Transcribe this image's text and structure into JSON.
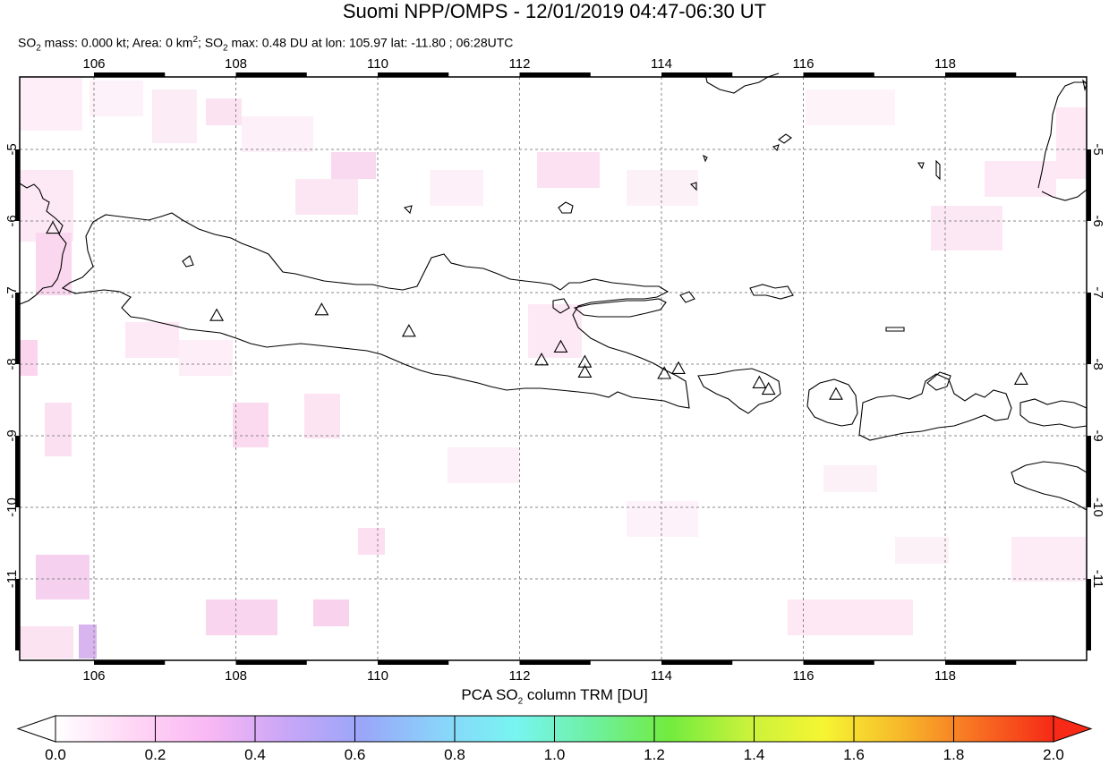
{
  "header": {
    "title": "Suomi NPP/OMPS - 12/01/2019 04:47-06:30 UT",
    "subtitle_parts": {
      "p1": "SO",
      "p1_sub": "2",
      "p2": " mass: 0.000 kt; Area: 0 km",
      "p2_sup": "2",
      "p3": "; SO",
      "p3_sub": "2",
      "p4": " max: 0.48 DU at lon: 105.97 lat: -11.80 ; 06:28UTC"
    }
  },
  "map": {
    "lon_range": [
      105.0,
      120.0
    ],
    "lat_range": [
      -12.1,
      -3.9
    ],
    "lon_ticks": [
      "106",
      "108",
      "110",
      "112",
      "114",
      "116",
      "118"
    ],
    "lat_ticks": [
      "-5",
      "-6",
      "-7",
      "-8",
      "-9",
      "-10",
      "-11"
    ],
    "grid": "dashed",
    "volcano_marker": "triangle-icon",
    "volcanoes": [
      {
        "lon": 105.42,
        "lat": -6.1
      },
      {
        "lon": 107.73,
        "lat": -7.32
      },
      {
        "lon": 109.21,
        "lat": -7.24
      },
      {
        "lon": 110.44,
        "lat": -7.54
      },
      {
        "lon": 112.31,
        "lat": -7.94
      },
      {
        "lon": 112.58,
        "lat": -7.76
      },
      {
        "lon": 112.92,
        "lat": -7.97
      },
      {
        "lon": 112.92,
        "lat": -8.11
      },
      {
        "lon": 114.04,
        "lat": -8.13
      },
      {
        "lon": 114.24,
        "lat": -8.06
      },
      {
        "lon": 115.38,
        "lat": -8.26
      },
      {
        "lon": 115.51,
        "lat": -8.35
      },
      {
        "lon": 116.46,
        "lat": -8.42
      },
      {
        "lon": 119.07,
        "lat": -8.21
      }
    ]
  },
  "colorbar": {
    "title_parts": {
      "p1": "PCA SO",
      "p1_sub": "2",
      "p2": " column TRM [DU]"
    },
    "min": 0.0,
    "max": 2.0,
    "tick_labels": [
      "0.0",
      "0.2",
      "0.4",
      "0.6",
      "0.8",
      "1.0",
      "1.2",
      "1.4",
      "1.6",
      "1.8",
      "2.0"
    ],
    "colors": [
      "#ffffff",
      "#ffd6f5",
      "#f9b8f4",
      "#c9a6f7",
      "#9aa6f9",
      "#8ad3fa",
      "#77f5f1",
      "#6ef0a0",
      "#72ec3e",
      "#c7f23b",
      "#f6f532",
      "#f7b92a",
      "#f86f22",
      "#f62a16"
    ]
  }
}
